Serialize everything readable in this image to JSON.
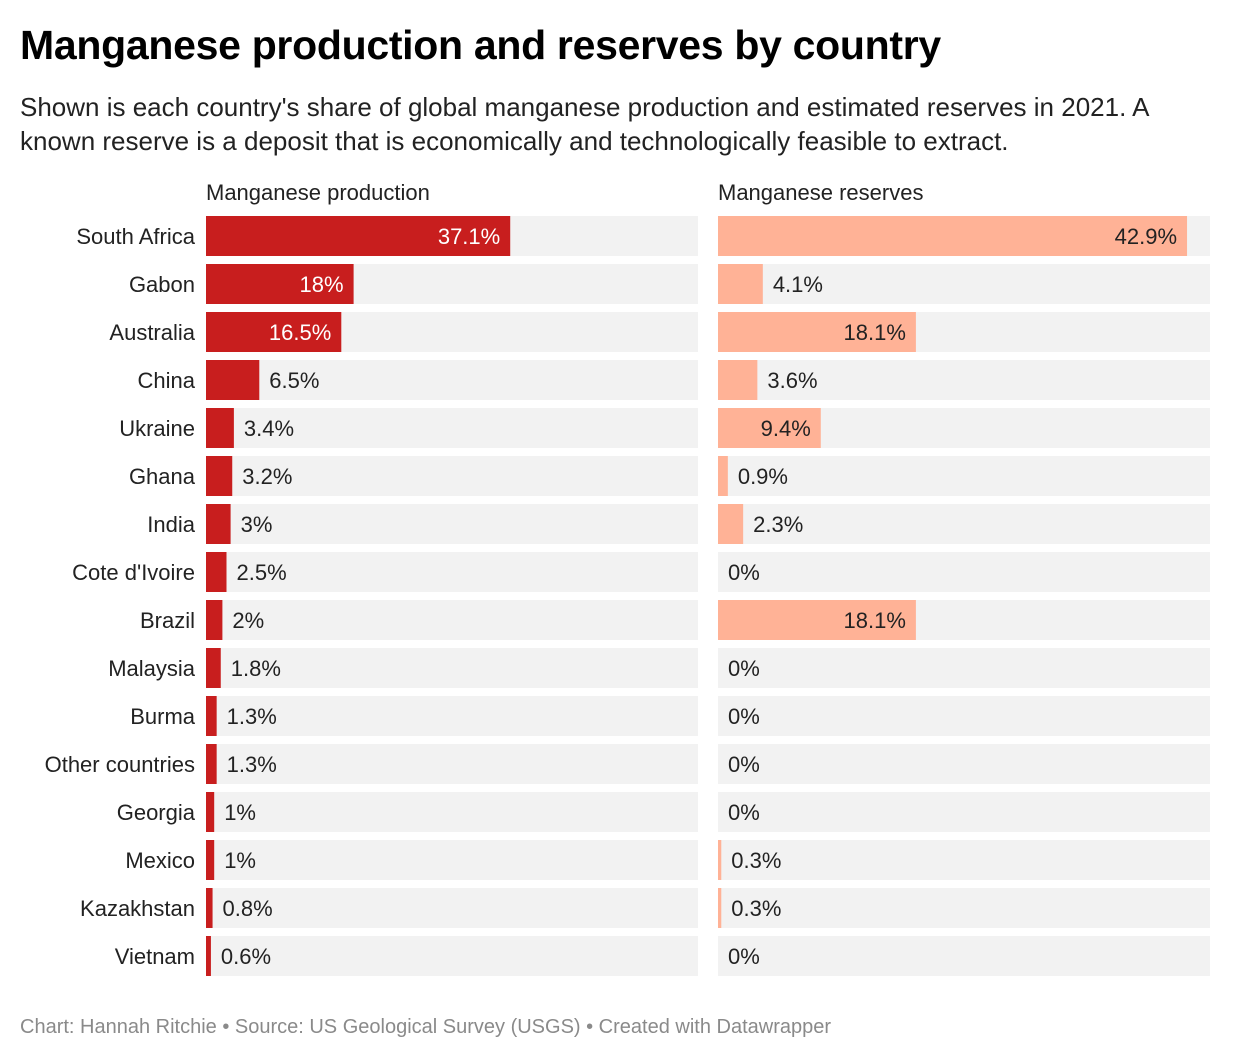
{
  "title": "Manganese production and reserves by country",
  "subtitle": "Shown is each country's share of global manganese production and estimated reserves in 2021. A known reserve is a deposit that is economically and technologically feasible to extract.",
  "footer": "Chart: Hannah Ritchie • Source: US Geological Survey (USGS) • Created with Datawrapper",
  "colors": {
    "production": "#c81e1e",
    "reserves": "#ffb296",
    "track": "#f2f2f2",
    "label_on_bar": "#ffffff",
    "label_off_bar": "#222222"
  },
  "chart_data": {
    "type": "bar",
    "orientation": "horizontal",
    "grid": false,
    "categories": [
      "South Africa",
      "Gabon",
      "Australia",
      "China",
      "Ukraine",
      "Ghana",
      "India",
      "Cote d'Ivoire",
      "Brazil",
      "Malaysia",
      "Burma",
      "Other countries",
      "Georgia",
      "Mexico",
      "Kazakhstan",
      "Vietnam"
    ],
    "panels": [
      {
        "name": "Manganese production",
        "max": 60,
        "values": [
          37.1,
          18,
          16.5,
          6.5,
          3.4,
          3.2,
          3,
          2.5,
          2,
          1.8,
          1.3,
          1.3,
          1,
          1,
          0.8,
          0.6
        ],
        "labels": [
          "37.1%",
          "18%",
          "16.5%",
          "6.5%",
          "3.4%",
          "3.2%",
          "3%",
          "2.5%",
          "2%",
          "1.8%",
          "1.3%",
          "1.3%",
          "1%",
          "1%",
          "0.8%",
          "0.6%"
        ]
      },
      {
        "name": "Manganese reserves",
        "max": 45,
        "values": [
          42.9,
          4.1,
          18.1,
          3.6,
          9.4,
          0.9,
          2.3,
          0,
          18.1,
          0,
          0,
          0,
          0,
          0.3,
          0.3,
          0
        ],
        "labels": [
          "42.9%",
          "4.1%",
          "18.1%",
          "3.6%",
          "9.4%",
          "0.9%",
          "2.3%",
          "0%",
          "18.1%",
          "0%",
          "0%",
          "0%",
          "0%",
          "0.3%",
          "0.3%",
          "0%"
        ]
      }
    ]
  }
}
